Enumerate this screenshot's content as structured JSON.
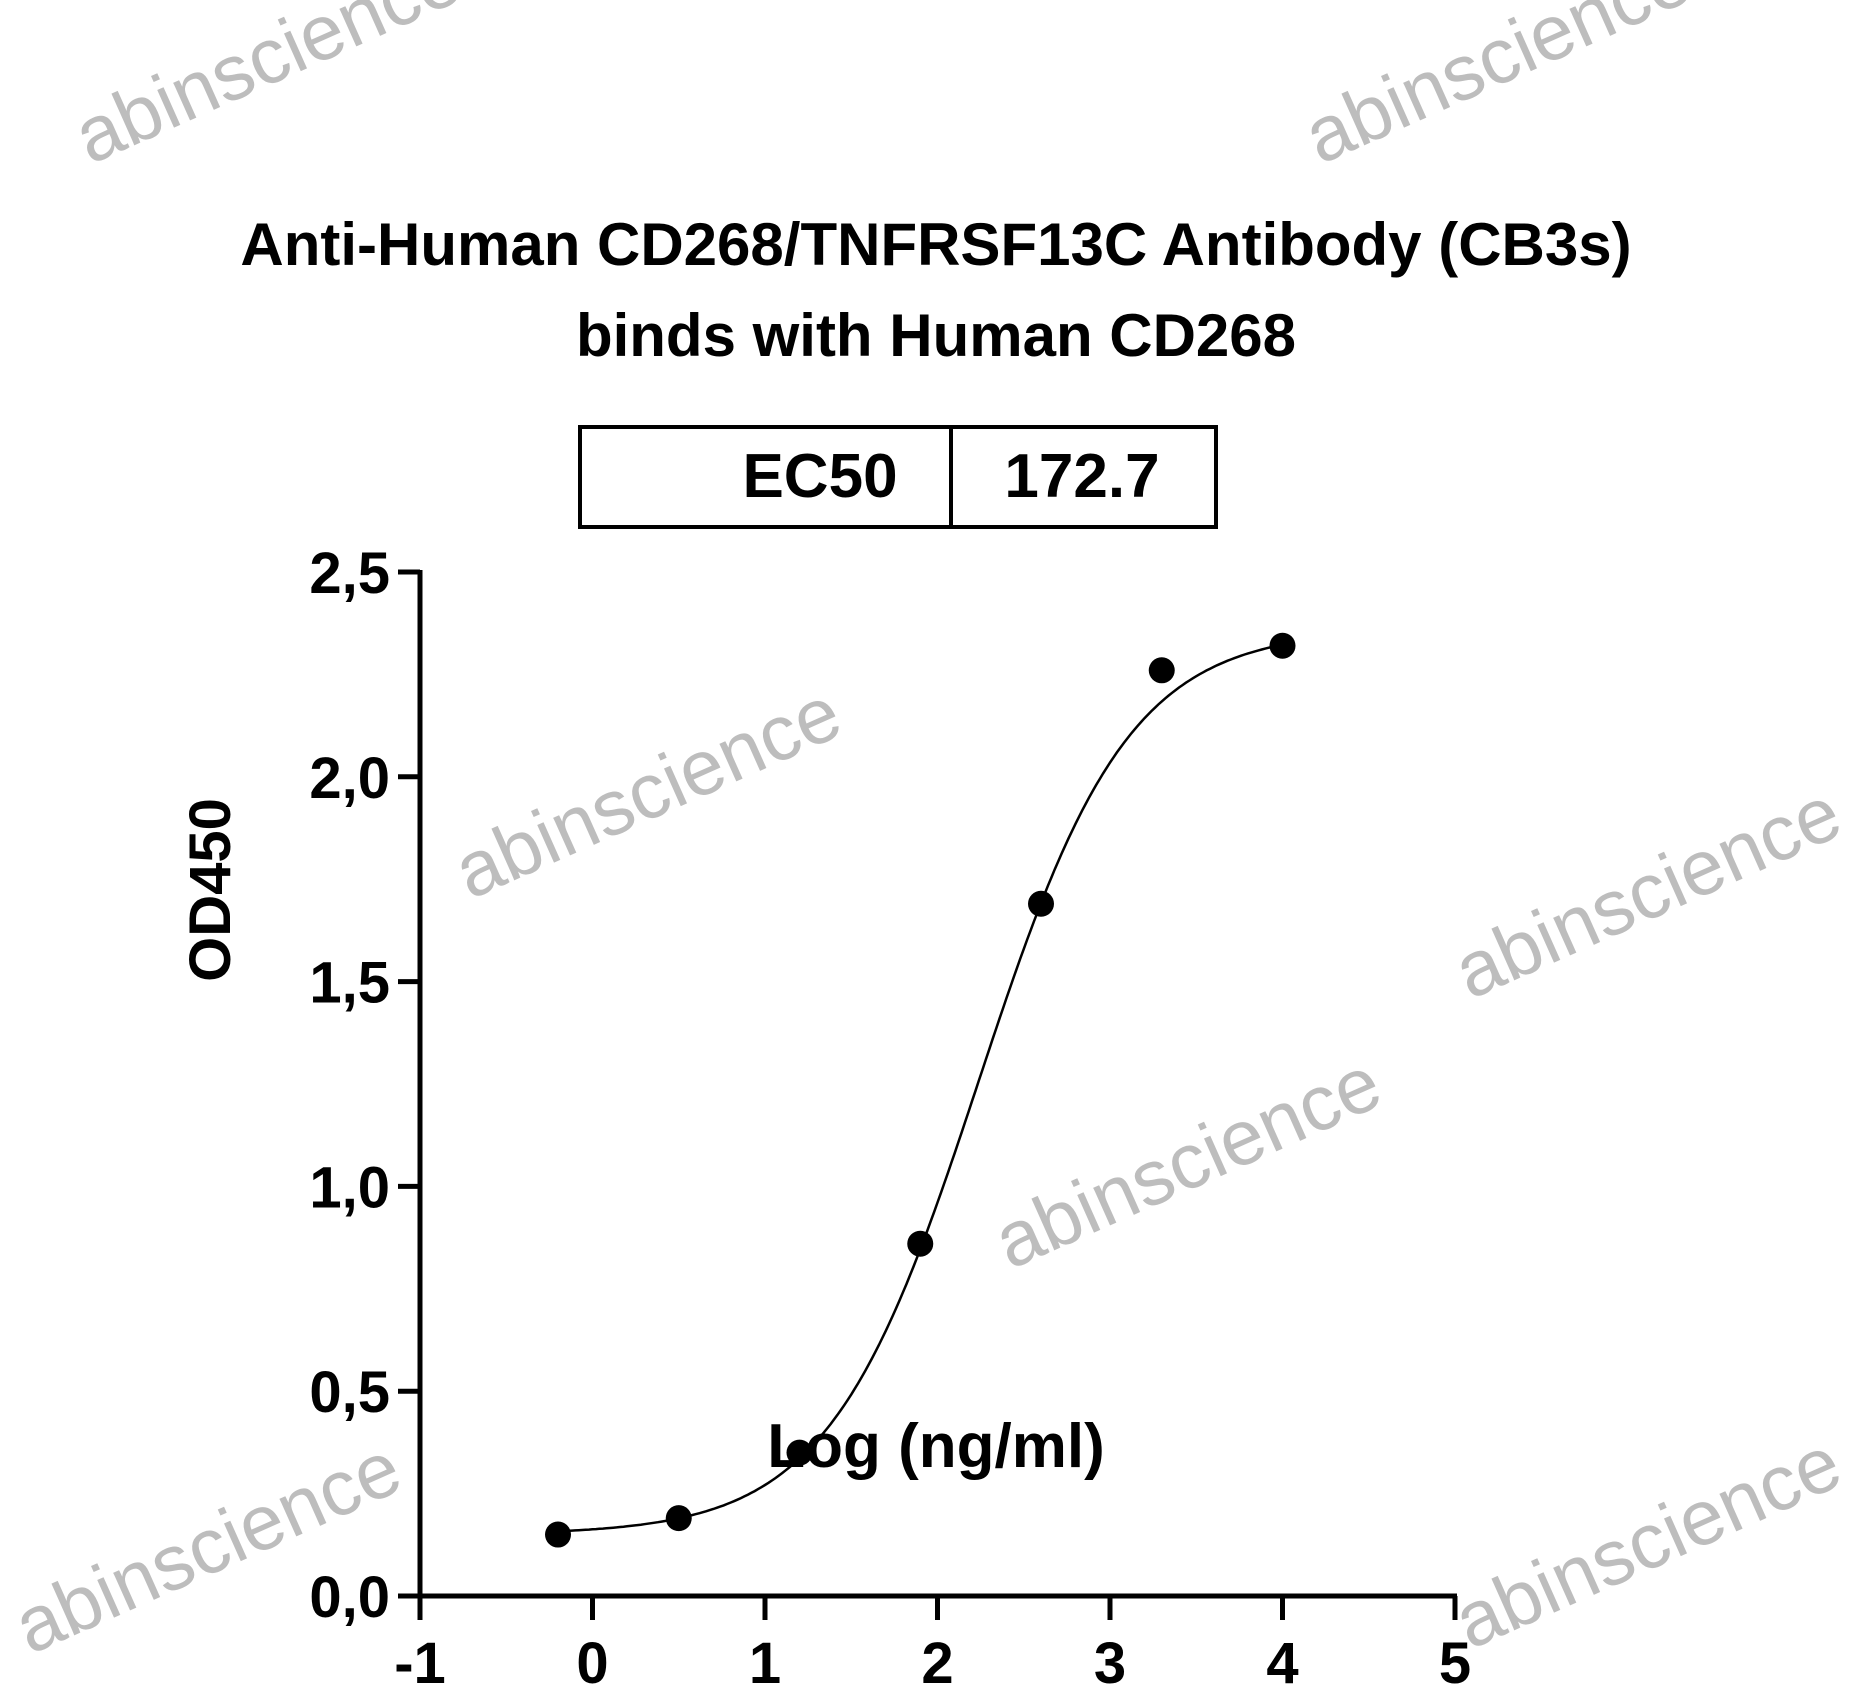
{
  "chart_data": {
    "type": "scatter",
    "title": [
      "Anti-Human CD268/TNFRSF13C Antibody (CB3s)",
      "binds with Human CD268"
    ],
    "xlabel": "Log (ng/ml)",
    "ylabel": "OD450",
    "xlim": [
      -1,
      5
    ],
    "ylim": [
      0,
      2.5
    ],
    "x_ticks": [
      "-1",
      "0",
      "1",
      "2",
      "3",
      "4",
      "5"
    ],
    "y_ticks": [
      "0,0",
      "0,5",
      "1,0",
      "1,5",
      "2,0",
      "2,5"
    ],
    "grid": false,
    "series": [
      {
        "x": [
          -0.2,
          0.5,
          1.2,
          1.9,
          2.6,
          3.3,
          4.0
        ],
        "y": [
          0.15,
          0.19,
          0.35,
          0.86,
          1.69,
          2.26,
          2.32
        ],
        "marker": "filled-circle",
        "color": "#000000",
        "fit": {
          "model": "4PL",
          "bottom": 0.15,
          "top": 2.36,
          "logEC50": 2.237,
          "hill": 1.0
        }
      }
    ],
    "annotation_table": {
      "label": "EC50",
      "value": "172.7"
    }
  },
  "watermark": "abinscience"
}
